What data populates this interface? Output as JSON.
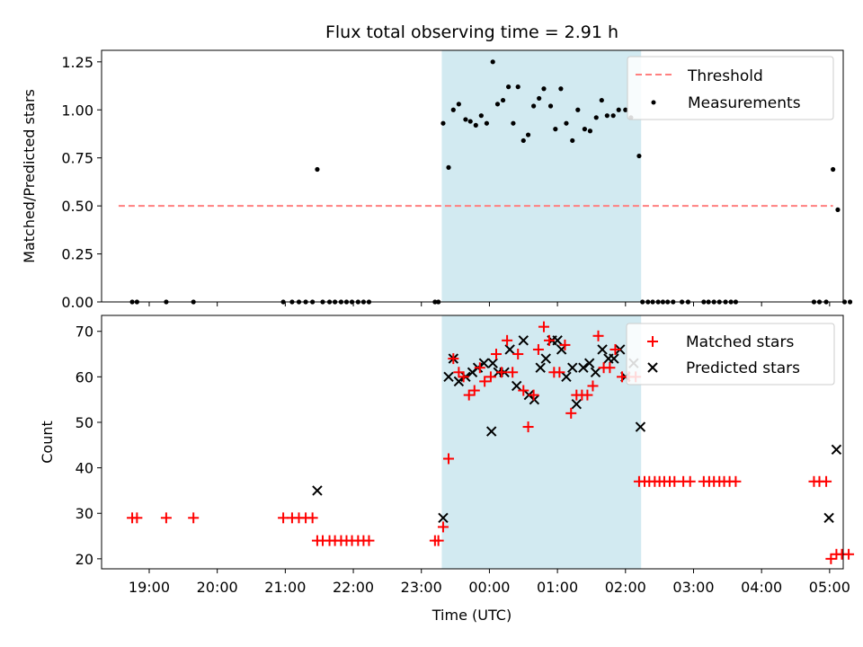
{
  "figure": {
    "title": "Flux total observing time = 2.91 h"
  },
  "chart_data": [
    {
      "type": "scatter",
      "title": "Flux total observing time = 2.91 h",
      "xlabel": "",
      "ylabel": "Matched/Predicted stars",
      "x_unit": "hours since 18:00 UTC",
      "xlim": [
        0.3,
        11.2
      ],
      "ylim": [
        0,
        1.31
      ],
      "yticks": [
        0.0,
        0.25,
        0.5,
        0.75,
        1.0,
        1.25
      ],
      "ytick_labels": [
        "0.00",
        "0.25",
        "0.50",
        "0.75",
        "1.00",
        "1.25"
      ],
      "shaded_span": {
        "x_start": 5.3,
        "x_end": 8.23,
        "color": "#add8e6"
      },
      "threshold": {
        "name": "Threshold",
        "y": 0.5,
        "x_start": 0.55,
        "x_end": 11.05,
        "color": "#ff7f7f"
      },
      "legend": {
        "position": "top-right",
        "entries": [
          "Threshold",
          "Measurements"
        ]
      },
      "series": [
        {
          "name": "Measurements",
          "color": "#000000",
          "marker": "dot",
          "points": [
            [
              0.75,
              0
            ],
            [
              0.82,
              0
            ],
            [
              1.25,
              0
            ],
            [
              1.65,
              0
            ],
            [
              2.97,
              0
            ],
            [
              3.1,
              0
            ],
            [
              3.2,
              0
            ],
            [
              3.3,
              0
            ],
            [
              3.4,
              0
            ],
            [
              3.47,
              0.69
            ],
            [
              3.55,
              0
            ],
            [
              3.65,
              0
            ],
            [
              3.73,
              0
            ],
            [
              3.82,
              0
            ],
            [
              3.9,
              0
            ],
            [
              3.98,
              0
            ],
            [
              4.07,
              0
            ],
            [
              4.15,
              0
            ],
            [
              4.23,
              0
            ],
            [
              5.2,
              0
            ],
            [
              5.25,
              0
            ],
            [
              5.32,
              0.93
            ],
            [
              5.4,
              0.7
            ],
            [
              5.47,
              1.0
            ],
            [
              5.55,
              1.03
            ],
            [
              5.65,
              0.95
            ],
            [
              5.72,
              0.94
            ],
            [
              5.8,
              0.92
            ],
            [
              5.88,
              0.97
            ],
            [
              5.96,
              0.93
            ],
            [
              6.05,
              1.25
            ],
            [
              6.12,
              1.03
            ],
            [
              6.2,
              1.05
            ],
            [
              6.28,
              1.12
            ],
            [
              6.35,
              0.93
            ],
            [
              6.42,
              1.12
            ],
            [
              6.5,
              0.84
            ],
            [
              6.57,
              0.87
            ],
            [
              6.65,
              1.02
            ],
            [
              6.73,
              1.06
            ],
            [
              6.8,
              1.11
            ],
            [
              6.9,
              1.02
            ],
            [
              6.97,
              0.9
            ],
            [
              7.05,
              1.11
            ],
            [
              7.13,
              0.93
            ],
            [
              7.22,
              0.84
            ],
            [
              7.3,
              1.0
            ],
            [
              7.4,
              0.9
            ],
            [
              7.48,
              0.89
            ],
            [
              7.57,
              0.96
            ],
            [
              7.65,
              1.05
            ],
            [
              7.73,
              0.97
            ],
            [
              7.82,
              0.97
            ],
            [
              7.9,
              1.0
            ],
            [
              8.0,
              1.0
            ],
            [
              8.08,
              0.96
            ],
            [
              8.2,
              0.76
            ],
            [
              8.25,
              0
            ],
            [
              8.33,
              0
            ],
            [
              8.4,
              0
            ],
            [
              8.48,
              0
            ],
            [
              8.55,
              0
            ],
            [
              8.62,
              0
            ],
            [
              8.7,
              0
            ],
            [
              8.83,
              0
            ],
            [
              8.92,
              0
            ],
            [
              9.15,
              0
            ],
            [
              9.22,
              0
            ],
            [
              9.3,
              0
            ],
            [
              9.38,
              0
            ],
            [
              9.47,
              0
            ],
            [
              9.55,
              0
            ],
            [
              9.62,
              0
            ],
            [
              10.77,
              0
            ],
            [
              10.85,
              0
            ],
            [
              10.95,
              0
            ],
            [
              11.05,
              0.69
            ],
            [
              11.12,
              0.48
            ],
            [
              11.22,
              0
            ],
            [
              11.3,
              0
            ]
          ]
        }
      ]
    },
    {
      "type": "scatter",
      "title": "",
      "xlabel": "Time (UTC)",
      "ylabel": "Count",
      "x_unit": "hours since 18:00 UTC",
      "xlim": [
        0.3,
        11.2
      ],
      "ylim": [
        17.8,
        73.5
      ],
      "yticks": [
        20,
        30,
        40,
        50,
        60,
        70
      ],
      "ytick_labels": [
        "20",
        "30",
        "40",
        "50",
        "60",
        "70"
      ],
      "xticks": [
        1,
        2,
        3,
        4,
        5,
        6,
        7,
        8,
        9,
        10,
        11
      ],
      "xtick_labels": [
        "19:00",
        "20:00",
        "21:00",
        "22:00",
        "23:00",
        "00:00",
        "01:00",
        "02:00",
        "03:00",
        "04:00",
        "05:00"
      ],
      "shaded_span": {
        "x_start": 5.3,
        "x_end": 8.23,
        "color": "#add8e6"
      },
      "legend": {
        "position": "top-right",
        "entries": [
          "Matched stars",
          "Predicted stars"
        ]
      },
      "series": [
        {
          "name": "Matched stars",
          "color": "#ff0000",
          "marker": "plus",
          "points": [
            [
              0.75,
              29
            ],
            [
              0.82,
              29
            ],
            [
              1.25,
              29
            ],
            [
              1.65,
              29
            ],
            [
              2.97,
              29
            ],
            [
              3.1,
              29
            ],
            [
              3.2,
              29
            ],
            [
              3.3,
              29
            ],
            [
              3.4,
              29
            ],
            [
              3.47,
              24
            ],
            [
              3.55,
              24
            ],
            [
              3.65,
              24
            ],
            [
              3.73,
              24
            ],
            [
              3.82,
              24
            ],
            [
              3.9,
              24
            ],
            [
              3.98,
              24
            ],
            [
              4.07,
              24
            ],
            [
              4.15,
              24
            ],
            [
              4.23,
              24
            ],
            [
              5.2,
              24
            ],
            [
              5.25,
              24
            ],
            [
              5.32,
              27
            ],
            [
              5.4,
              42
            ],
            [
              5.47,
              64
            ],
            [
              5.55,
              61
            ],
            [
              5.62,
              60
            ],
            [
              5.7,
              56
            ],
            [
              5.78,
              57
            ],
            [
              5.86,
              62
            ],
            [
              5.93,
              59
            ],
            [
              6.02,
              60
            ],
            [
              6.1,
              65
            ],
            [
              6.18,
              61
            ],
            [
              6.26,
              68
            ],
            [
              6.34,
              61
            ],
            [
              6.42,
              65
            ],
            [
              6.5,
              57
            ],
            [
              6.57,
              49
            ],
            [
              6.65,
              56
            ],
            [
              6.72,
              66
            ],
            [
              6.8,
              71
            ],
            [
              6.88,
              68
            ],
            [
              6.95,
              61
            ],
            [
              7.03,
              61
            ],
            [
              7.11,
              67
            ],
            [
              7.2,
              52
            ],
            [
              7.28,
              56
            ],
            [
              7.36,
              56
            ],
            [
              7.44,
              56
            ],
            [
              7.52,
              58
            ],
            [
              7.6,
              69
            ],
            [
              7.68,
              62
            ],
            [
              7.77,
              62
            ],
            [
              7.85,
              66
            ],
            [
              7.95,
              60
            ],
            [
              8.05,
              60
            ],
            [
              8.15,
              60
            ],
            [
              8.2,
              37
            ],
            [
              8.28,
              37
            ],
            [
              8.35,
              37
            ],
            [
              8.43,
              37
            ],
            [
              8.5,
              37
            ],
            [
              8.57,
              37
            ],
            [
              8.65,
              37
            ],
            [
              8.72,
              37
            ],
            [
              8.85,
              37
            ],
            [
              8.95,
              37
            ],
            [
              9.15,
              37
            ],
            [
              9.23,
              37
            ],
            [
              9.3,
              37
            ],
            [
              9.38,
              37
            ],
            [
              9.45,
              37
            ],
            [
              9.53,
              37
            ],
            [
              9.62,
              37
            ],
            [
              10.77,
              37
            ],
            [
              10.85,
              37
            ],
            [
              10.95,
              37
            ],
            [
              11.02,
              20
            ],
            [
              11.1,
              21
            ],
            [
              11.18,
              21
            ],
            [
              11.28,
              21
            ]
          ]
        },
        {
          "name": "Predicted stars",
          "color": "#000000",
          "marker": "x",
          "points": [
            [
              3.47,
              35
            ],
            [
              5.32,
              29
            ],
            [
              5.4,
              60
            ],
            [
              5.47,
              64
            ],
            [
              5.55,
              59
            ],
            [
              5.65,
              60
            ],
            [
              5.75,
              61
            ],
            [
              5.83,
              62
            ],
            [
              5.92,
              63
            ],
            [
              6.03,
              48
            ],
            [
              6.05,
              63
            ],
            [
              6.13,
              61
            ],
            [
              6.22,
              61
            ],
            [
              6.3,
              66
            ],
            [
              6.4,
              58
            ],
            [
              6.5,
              68
            ],
            [
              6.58,
              56
            ],
            [
              6.66,
              55
            ],
            [
              6.75,
              62
            ],
            [
              6.83,
              64
            ],
            [
              6.92,
              68
            ],
            [
              7.0,
              68
            ],
            [
              7.06,
              66
            ],
            [
              7.13,
              60
            ],
            [
              7.22,
              62
            ],
            [
              7.28,
              54
            ],
            [
              7.38,
              62
            ],
            [
              7.47,
              63
            ],
            [
              7.56,
              61
            ],
            [
              7.66,
              66
            ],
            [
              7.75,
              64
            ],
            [
              7.83,
              64
            ],
            [
              7.92,
              66
            ],
            [
              8.0,
              60
            ],
            [
              8.12,
              63
            ],
            [
              8.22,
              49
            ],
            [
              10.99,
              29
            ],
            [
              11.1,
              44
            ]
          ]
        }
      ]
    }
  ]
}
